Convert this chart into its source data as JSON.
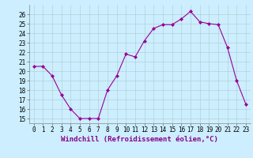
{
  "x": [
    0,
    1,
    2,
    3,
    4,
    5,
    6,
    7,
    8,
    9,
    10,
    11,
    12,
    13,
    14,
    15,
    16,
    17,
    18,
    19,
    20,
    21,
    22,
    23
  ],
  "y": [
    20.5,
    20.5,
    19.5,
    17.5,
    16.0,
    15.0,
    15.0,
    15.0,
    18.0,
    19.5,
    21.8,
    21.5,
    23.2,
    24.5,
    24.9,
    24.9,
    25.5,
    26.3,
    25.2,
    25.0,
    24.9,
    22.5,
    19.0,
    16.5
  ],
  "line_color": "#990099",
  "marker": "D",
  "marker_size": 2,
  "bg_color": "#cceeff",
  "grid_color": "#aacccc",
  "xlabel": "Windchill (Refroidissement éolien,°C)",
  "xlabel_fontsize": 6.5,
  "yticks": [
    15,
    16,
    17,
    18,
    19,
    20,
    21,
    22,
    23,
    24,
    25,
    26
  ],
  "xlim": [
    -0.5,
    23.5
  ],
  "ylim": [
    14.5,
    27.0
  ],
  "tick_fontsize": 5.5,
  "xlabel_color": "#880088"
}
